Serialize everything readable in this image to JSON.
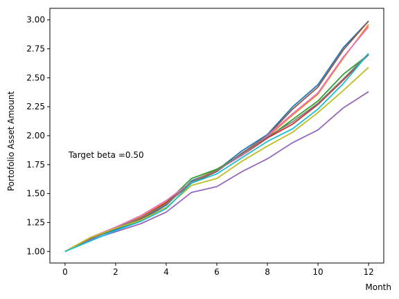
{
  "chart_data": {
    "type": "line",
    "title": "",
    "xlabel": "Month",
    "ylabel": "Portofolio Asset Amount",
    "annotation": "Target beta =0.50",
    "xlim": [
      -0.6,
      12.6
    ],
    "ylim": [
      0.9,
      3.1
    ],
    "xticks": [
      0,
      2,
      4,
      6,
      8,
      10,
      12
    ],
    "yticks": [
      1.0,
      1.25,
      1.5,
      1.75,
      2.0,
      2.25,
      2.5,
      2.75,
      3.0
    ],
    "ytick_labels": [
      "1.00",
      "1.25",
      "1.50",
      "1.75",
      "2.00",
      "2.25",
      "2.50",
      "2.75",
      "3.00"
    ],
    "grid": false,
    "legend": "none",
    "x": [
      0,
      1,
      2,
      3,
      4,
      5,
      6,
      7,
      8,
      9,
      10,
      11,
      12
    ],
    "series": [
      {
        "color": "#1f77b4",
        "values": [
          1.0,
          1.11,
          1.19,
          1.27,
          1.4,
          1.61,
          1.7,
          1.87,
          2.01,
          2.25,
          2.44,
          2.76,
          2.99
        ]
      },
      {
        "color": "#ff7f0e",
        "values": [
          1.0,
          1.12,
          1.21,
          1.3,
          1.43,
          1.6,
          1.71,
          1.83,
          1.99,
          2.18,
          2.36,
          2.67,
          2.96
        ]
      },
      {
        "color": "#2ca02c",
        "values": [
          1.0,
          1.11,
          1.2,
          1.29,
          1.42,
          1.63,
          1.71,
          1.84,
          1.98,
          2.14,
          2.3,
          2.53,
          2.7
        ]
      },
      {
        "color": "#d62728",
        "values": [
          1.0,
          1.11,
          1.2,
          1.29,
          1.42,
          1.6,
          1.7,
          1.83,
          1.98,
          2.1,
          2.27,
          2.48,
          2.7
        ]
      },
      {
        "color": "#9467bd",
        "values": [
          1.0,
          1.1,
          1.17,
          1.24,
          1.34,
          1.51,
          1.56,
          1.69,
          1.8,
          1.94,
          2.05,
          2.24,
          2.38
        ]
      },
      {
        "color": "#8c564b",
        "values": [
          1.0,
          1.11,
          1.2,
          1.28,
          1.41,
          1.59,
          1.69,
          1.85,
          2.0,
          2.23,
          2.42,
          2.74,
          2.99
        ]
      },
      {
        "color": "#e377c2",
        "values": [
          1.0,
          1.12,
          1.21,
          1.31,
          1.44,
          1.6,
          1.7,
          1.83,
          2.0,
          2.19,
          2.37,
          2.68,
          2.94
        ]
      },
      {
        "color": "#7f7f7f",
        "values": [
          1.0,
          1.11,
          1.2,
          1.29,
          1.41,
          1.6,
          1.7,
          1.84,
          1.99,
          2.12,
          2.28,
          2.49,
          2.71
        ]
      },
      {
        "color": "#bcbd22",
        "values": [
          1.0,
          1.12,
          1.2,
          1.27,
          1.38,
          1.57,
          1.63,
          1.78,
          1.91,
          2.03,
          2.2,
          2.39,
          2.59
        ]
      },
      {
        "color": "#17becf",
        "values": [
          1.0,
          1.09,
          1.18,
          1.26,
          1.37,
          1.59,
          1.67,
          1.81,
          1.95,
          2.06,
          2.23,
          2.45,
          2.71
        ]
      }
    ]
  }
}
